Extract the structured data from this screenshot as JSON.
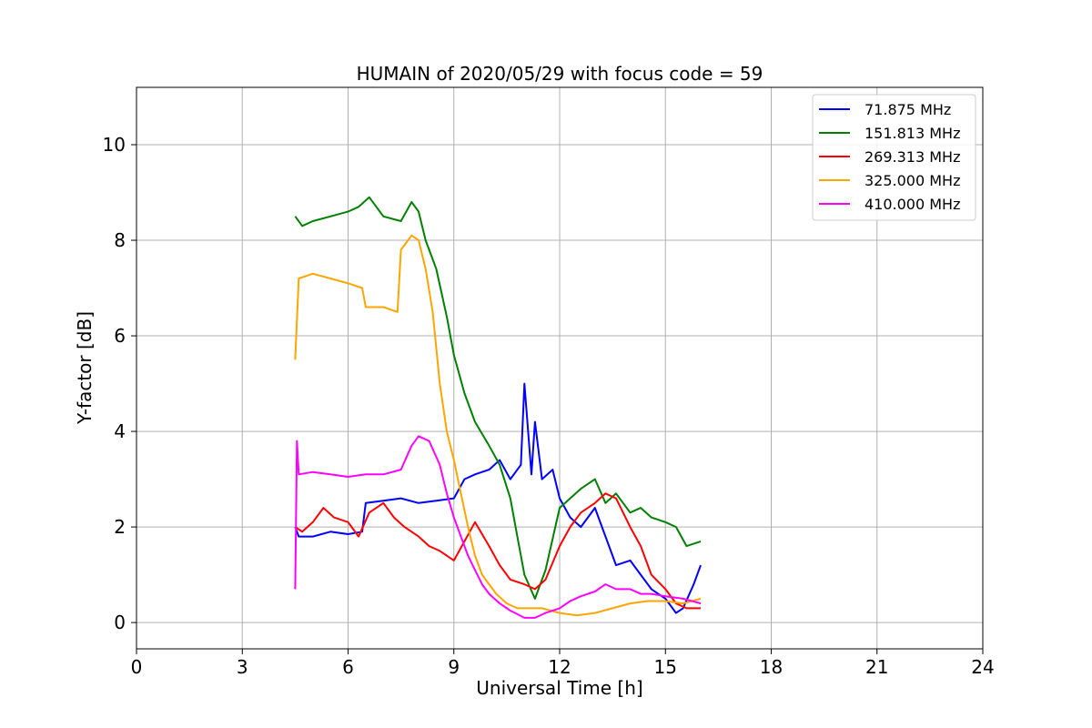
{
  "chart_data": {
    "type": "line",
    "title": "HUMAIN of 2020/05/29 with focus code = 59",
    "xlabel": "Universal Time [h]",
    "ylabel": "Y-factor [dB]",
    "xlim": [
      0,
      24
    ],
    "ylim": [
      -0.55,
      11.2
    ],
    "xticks": [
      0,
      3,
      6,
      9,
      12,
      15,
      18,
      21,
      24
    ],
    "yticks": [
      0,
      2,
      4,
      6,
      8,
      10
    ],
    "grid": true,
    "legend_position": "top-right",
    "series": [
      {
        "name": " 71.875 MHz",
        "color": "#0000ff",
        "x": [
          4.5,
          4.6,
          5.0,
          5.5,
          6.0,
          6.4,
          6.5,
          7.0,
          7.5,
          8.0,
          8.5,
          9.0,
          9.3,
          9.6,
          10.0,
          10.3,
          10.6,
          10.9,
          11.0,
          11.2,
          11.3,
          11.5,
          11.8,
          12.0,
          12.3,
          12.6,
          13.0,
          13.3,
          13.6,
          14.0,
          14.3,
          14.6,
          15.0,
          15.3,
          15.5,
          15.8,
          16.0
        ],
        "y": [
          2.0,
          1.8,
          1.8,
          1.9,
          1.85,
          1.9,
          2.5,
          2.55,
          2.6,
          2.5,
          2.55,
          2.6,
          3.0,
          3.1,
          3.2,
          3.4,
          3.0,
          3.3,
          5.0,
          3.1,
          4.2,
          3.0,
          3.2,
          2.6,
          2.2,
          2.0,
          2.4,
          1.8,
          1.2,
          1.3,
          1.0,
          0.7,
          0.5,
          0.2,
          0.3,
          0.8,
          1.2
        ]
      },
      {
        "name": "151.813 MHz",
        "color": "#008000",
        "x": [
          4.5,
          4.7,
          5.0,
          5.5,
          6.0,
          6.3,
          6.6,
          7.0,
          7.5,
          7.8,
          8.0,
          8.2,
          8.5,
          8.8,
          9.0,
          9.3,
          9.6,
          10.0,
          10.3,
          10.6,
          10.8,
          11.0,
          11.3,
          11.6,
          12.0,
          12.3,
          12.6,
          13.0,
          13.3,
          13.6,
          14.0,
          14.3,
          14.6,
          15.0,
          15.3,
          15.6,
          16.0
        ],
        "y": [
          8.5,
          8.3,
          8.4,
          8.5,
          8.6,
          8.7,
          8.9,
          8.5,
          8.4,
          8.8,
          8.6,
          8.0,
          7.4,
          6.4,
          5.6,
          4.8,
          4.2,
          3.7,
          3.3,
          2.6,
          1.8,
          1.0,
          0.5,
          1.1,
          2.4,
          2.6,
          2.8,
          3.0,
          2.5,
          2.7,
          2.3,
          2.4,
          2.2,
          2.1,
          2.0,
          1.6,
          1.7
        ]
      },
      {
        "name": "269.313 MHz",
        "color": "#ff0000",
        "x": [
          4.5,
          4.7,
          5.0,
          5.3,
          5.6,
          6.0,
          6.3,
          6.6,
          7.0,
          7.3,
          7.6,
          8.0,
          8.3,
          8.6,
          9.0,
          9.3,
          9.6,
          10.0,
          10.3,
          10.6,
          11.0,
          11.3,
          11.6,
          12.0,
          12.3,
          12.6,
          13.0,
          13.3,
          13.6,
          14.0,
          14.3,
          14.6,
          15.0,
          15.3,
          15.6,
          16.0
        ],
        "y": [
          2.0,
          1.9,
          2.1,
          2.4,
          2.2,
          2.1,
          1.8,
          2.3,
          2.5,
          2.2,
          2.0,
          1.8,
          1.6,
          1.5,
          1.3,
          1.7,
          2.1,
          1.6,
          1.2,
          0.9,
          0.8,
          0.7,
          0.9,
          1.6,
          2.0,
          2.3,
          2.5,
          2.7,
          2.6,
          2.0,
          1.6,
          1.0,
          0.7,
          0.4,
          0.3,
          0.3
        ]
      },
      {
        "name": "325.000 MHz",
        "color": "#ffa500",
        "x": [
          4.5,
          4.6,
          5.0,
          5.5,
          6.0,
          6.4,
          6.5,
          7.0,
          7.4,
          7.5,
          7.8,
          8.0,
          8.2,
          8.4,
          8.6,
          8.8,
          9.0,
          9.2,
          9.4,
          9.6,
          9.8,
          10.0,
          10.2,
          10.5,
          10.8,
          11.0,
          11.5,
          12.0,
          12.5,
          13.0,
          13.5,
          14.0,
          14.5,
          15.0,
          15.5,
          16.0
        ],
        "y": [
          5.5,
          7.2,
          7.3,
          7.2,
          7.1,
          7.0,
          6.6,
          6.6,
          6.5,
          7.8,
          8.1,
          8.0,
          7.4,
          6.5,
          5.0,
          4.0,
          3.4,
          2.7,
          2.0,
          1.4,
          1.0,
          0.8,
          0.6,
          0.4,
          0.3,
          0.3,
          0.3,
          0.2,
          0.15,
          0.2,
          0.3,
          0.4,
          0.45,
          0.45,
          0.4,
          0.5
        ]
      },
      {
        "name": "410.000 MHz",
        "color": "#ff00ff",
        "x": [
          4.5,
          4.55,
          4.6,
          5.0,
          5.5,
          6.0,
          6.5,
          7.0,
          7.5,
          7.8,
          8.0,
          8.3,
          8.6,
          8.8,
          9.0,
          9.2,
          9.4,
          9.6,
          9.8,
          10.0,
          10.3,
          10.6,
          11.0,
          11.3,
          11.6,
          12.0,
          12.3,
          12.6,
          13.0,
          13.3,
          13.6,
          14.0,
          14.3,
          14.6,
          15.0,
          15.5,
          16.0
        ],
        "y": [
          0.7,
          3.8,
          3.1,
          3.15,
          3.1,
          3.05,
          3.1,
          3.1,
          3.2,
          3.7,
          3.9,
          3.8,
          3.3,
          2.7,
          2.2,
          1.8,
          1.4,
          1.1,
          0.8,
          0.6,
          0.4,
          0.25,
          0.1,
          0.1,
          0.2,
          0.3,
          0.45,
          0.55,
          0.65,
          0.8,
          0.7,
          0.7,
          0.6,
          0.6,
          0.55,
          0.5,
          0.4
        ]
      }
    ]
  }
}
